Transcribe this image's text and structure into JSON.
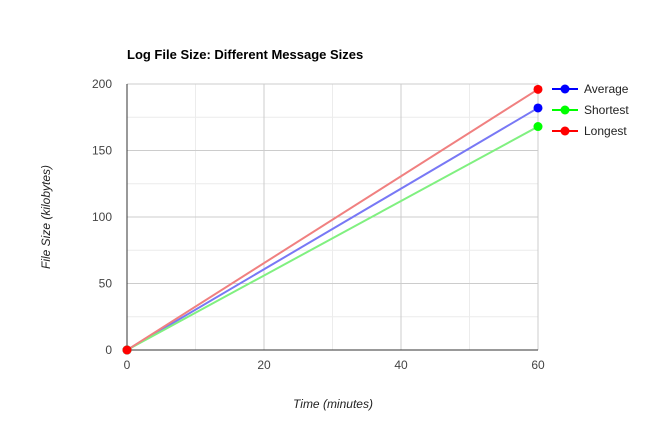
{
  "chart_data": {
    "type": "line",
    "title": "Log File Size: Different Message Sizes",
    "xlabel": "Time (minutes)",
    "ylabel": "File Size (kilobytes)",
    "xlim": [
      0,
      60
    ],
    "ylim": [
      0,
      200
    ],
    "x_ticks": [
      "0",
      "20",
      "40",
      "60"
    ],
    "y_ticks": [
      "0",
      "50",
      "100",
      "150",
      "200"
    ],
    "grid": true,
    "legend_position": "right",
    "series": [
      {
        "name": "Average",
        "color": "#0000ff",
        "line_color": "#7878f5",
        "x": [
          0,
          60
        ],
        "y": [
          0,
          182
        ]
      },
      {
        "name": "Shortest",
        "color": "#00ff00",
        "line_color": "#80f080",
        "x": [
          0,
          60
        ],
        "y": [
          0,
          168
        ]
      },
      {
        "name": "Longest",
        "color": "#ff0000",
        "line_color": "#f08080",
        "x": [
          0,
          60
        ],
        "y": [
          0,
          196
        ]
      }
    ]
  }
}
